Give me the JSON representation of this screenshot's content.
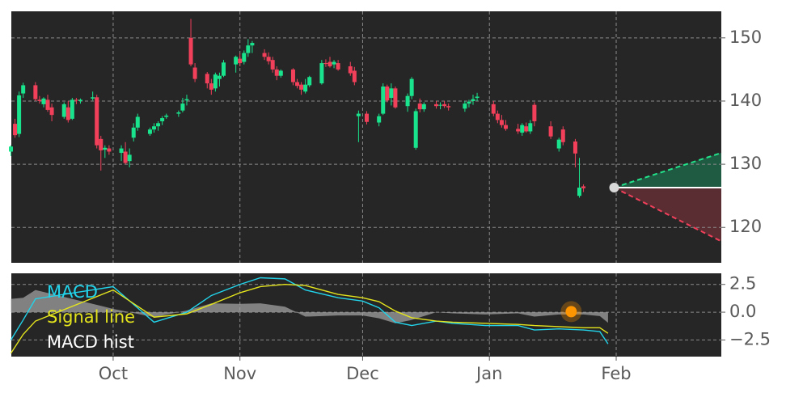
{
  "chart_data": [
    {
      "type": "candlestick",
      "up_color": "#19e38c",
      "down_color": "#f2405a",
      "xlim": [
        5.1,
        178.7
      ],
      "ylim": [
        114.4,
        154.2
      ],
      "yticks": [
        120,
        130,
        140,
        150
      ],
      "grid": true,
      "x": [
        5,
        6,
        7,
        8,
        11,
        12,
        13,
        14,
        15,
        18,
        19,
        20,
        21,
        22,
        25,
        26,
        27,
        28,
        29,
        32,
        33,
        34,
        35,
        36,
        39,
        40,
        41,
        42,
        43,
        46,
        47,
        48,
        49,
        50,
        53,
        54,
        55,
        56,
        57,
        60,
        61,
        62,
        63,
        64,
        67,
        68,
        69,
        70,
        71,
        74,
        75,
        76,
        77,
        78,
        81,
        82,
        83,
        84,
        85,
        88,
        89,
        90,
        92,
        95,
        96,
        97,
        98,
        99,
        102,
        103,
        104,
        105,
        106,
        109,
        110,
        111,
        112,
        116,
        117,
        118,
        119,
        123,
        124,
        125,
        126,
        129,
        130,
        131,
        132,
        133,
        137,
        139,
        140,
        143,
        144,
        145
      ],
      "ohlc": [
        [
          132,
          133,
          131.3,
          132.8
        ],
        [
          136.4,
          137.2,
          134.2,
          134.6
        ],
        [
          134.8,
          141.5,
          134.3,
          140.9
        ],
        [
          141.2,
          142.9,
          140.5,
          142.5
        ],
        [
          142.5,
          143,
          140,
          140.3
        ],
        [
          140.2,
          140.8,
          139.6,
          140.0
        ],
        [
          139.5,
          140.6,
          139.0,
          140.4
        ],
        [
          140.2,
          141,
          138.3,
          138.6
        ],
        [
          139,
          139.6,
          136.8,
          137.8
        ],
        [
          137.5,
          139.8,
          137.2,
          139.5
        ],
        [
          139,
          140,
          136.6,
          137.0
        ],
        [
          137.2,
          140.5,
          137,
          140.2
        ],
        [
          140.2,
          140.5,
          139.5,
          140.1
        ],
        [
          140,
          140.4,
          139.6,
          140.2
        ],
        [
          140.4,
          141.5,
          140.1,
          140.6
        ],
        [
          140.6,
          141,
          132.5,
          133
        ],
        [
          134,
          134.5,
          129,
          132.2
        ],
        [
          132.3,
          133,
          131,
          132.6
        ],
        [
          132.5,
          133,
          131.5,
          132
        ],
        [
          131.8,
          133,
          130.5,
          132.5
        ],
        [
          132,
          133.5,
          130,
          130.2
        ],
        [
          130.5,
          132.5,
          129.5,
          131.5
        ],
        [
          134.2,
          136.5,
          133.6,
          135.8
        ],
        [
          135.8,
          138,
          135.3,
          137.5
        ],
        [
          134.8,
          135.8,
          134.5,
          135.5
        ],
        [
          135.5,
          136.5,
          135,
          136
        ],
        [
          136,
          136.8,
          135.3,
          136.5
        ],
        [
          136.8,
          137.6,
          136.2,
          137.3
        ],
        [
          137.5,
          138,
          137.2,
          137.7
        ],
        [
          138,
          138.5,
          137.5,
          138.2
        ],
        [
          138.5,
          140.5,
          138.2,
          139.6
        ],
        [
          140.1,
          141,
          139.3,
          140.3
        ],
        [
          150,
          153,
          145.5,
          145.8
        ],
        [
          145.3,
          146,
          143,
          143.5
        ],
        [
          144.3,
          144.6,
          142,
          142.8
        ],
        [
          142.8,
          143.5,
          141,
          141.8
        ],
        [
          142,
          144.5,
          141.5,
          144.2
        ],
        [
          143.5,
          144.5,
          142.3,
          144
        ],
        [
          144,
          146.5,
          143.8,
          146.1
        ],
        [
          145.8,
          147.2,
          144.5,
          147
        ],
        [
          146.7,
          147.5,
          145.5,
          146
        ],
        [
          146.2,
          148,
          145.8,
          147.6
        ],
        [
          147.6,
          149.8,
          147,
          148.8
        ],
        [
          148.8,
          149.5,
          147.6,
          149.2
        ],
        [
          147.6,
          148.2,
          146.5,
          147
        ],
        [
          147,
          147.7,
          145.8,
          146.3
        ],
        [
          146.5,
          147,
          144.5,
          145
        ],
        [
          145,
          145.5,
          143.3,
          144
        ],
        [
          144,
          145,
          143.7,
          144.8
        ],
        [
          145,
          145.2,
          142.5,
          143
        ],
        [
          143,
          143.5,
          142,
          142.4
        ],
        [
          142.6,
          143,
          141,
          141.8
        ],
        [
          141.5,
          143.5,
          141.2,
          142.6
        ],
        [
          142.5,
          144,
          142.2,
          143.8
        ],
        [
          142.8,
          146.5,
          142.6,
          146
        ],
        [
          146,
          146.6,
          145.4,
          145.9
        ],
        [
          146.2,
          147,
          145.3,
          145.5
        ],
        [
          145.8,
          146.5,
          145.2,
          146.2
        ],
        [
          146,
          146.5,
          144.8,
          145
        ],
        [
          145.5,
          146.2,
          144,
          144.4
        ],
        [
          144.8,
          145.4,
          142.5,
          143
        ],
        [
          137.6,
          138.5,
          133.5,
          138
        ],
        [
          138,
          138.4,
          136.3,
          136.7
        ],
        [
          136.6,
          138,
          136,
          137.6
        ],
        [
          138,
          142.8,
          137.8,
          142.3
        ],
        [
          142.3,
          142.6,
          139.8,
          140.1
        ],
        [
          140.5,
          142.8,
          139.3,
          142
        ],
        [
          142,
          142.3,
          138.8,
          139
        ],
        [
          139.2,
          141.2,
          138.3,
          140.8
        ],
        [
          140.8,
          143.8,
          140.3,
          143.5
        ],
        [
          132.6,
          138.8,
          132.3,
          138.4
        ],
        [
          139.6,
          140.4,
          138.2,
          138.7
        ],
        [
          138.7,
          139.8,
          138.3,
          139.5
        ],
        [
          139.5,
          140,
          138.8,
          139.2
        ],
        [
          139.3,
          139.8,
          138.7,
          139.4
        ],
        [
          139.5,
          140,
          138.9,
          139.2
        ],
        [
          139.2,
          139.6,
          138.5,
          139
        ],
        [
          138.8,
          140,
          138.3,
          139.6
        ],
        [
          139.6,
          140.2,
          139,
          139.9
        ],
        [
          140,
          141,
          139.4,
          140.3
        ],
        [
          140.5,
          141.3,
          140,
          140.7
        ],
        [
          139.5,
          140,
          137.6,
          138
        ],
        [
          138,
          138.5,
          136.5,
          137
        ],
        [
          137,
          137.8,
          135.8,
          136.2
        ],
        [
          136.2,
          137,
          135.3,
          135.6
        ],
        [
          135.6,
          136.4,
          134.8,
          135.2
        ],
        [
          135,
          136.5,
          134.5,
          136.2
        ],
        [
          136,
          136.6,
          135,
          135.2
        ],
        [
          135.2,
          137,
          134.8,
          136.5
        ],
        [
          139.4,
          139.8,
          136,
          136.8
        ],
        [
          136,
          136.8,
          134,
          134.4
        ],
        [
          132.5,
          134.2,
          132,
          133.9
        ],
        [
          135.5,
          136,
          133,
          133.5
        ],
        [
          133.6,
          134,
          129.5,
          131.7
        ],
        [
          125,
          131,
          124.7,
          126.3
        ],
        [
          126.5,
          126.8,
          125.6,
          126.2
        ]
      ],
      "forecast": {
        "start_x": 152.5,
        "start": 126.3,
        "upper_end": 131.8,
        "lower_end": 117.8,
        "upper_color": "#22e38a",
        "upper_fill": "#1f5a43",
        "lower_color": "#f2405a",
        "lower_fill": "#5a2d33",
        "point_color": "#d8d8d8"
      }
    },
    {
      "type": "line",
      "xlim": [
        5.1,
        178.7
      ],
      "ylim": [
        -4.0,
        3.5
      ],
      "yticks": [
        2.5,
        {
          "value": 0,
          "label": "0.0"
        },
        {
          "value": -2.5,
          "label": "−2.5"
        }
      ],
      "xticks": [
        {
          "value": 30,
          "label": "Oct"
        },
        {
          "value": 61,
          "label": "Nov"
        },
        {
          "value": 91,
          "label": "Dec"
        },
        {
          "value": 122,
          "label": "Jan"
        },
        {
          "value": 153,
          "label": "Feb"
        }
      ],
      "grid": true,
      "legend": "upper left",
      "x": [
        5,
        8,
        11,
        30,
        40,
        48,
        54,
        61,
        66,
        72,
        77,
        85,
        91,
        95,
        99,
        103,
        109,
        113,
        121,
        129,
        133,
        139,
        145,
        149,
        151
      ],
      "series": [
        {
          "name": "MACD",
          "color": "#22d3ea",
          "values": [
            -2.5,
            -0.7,
            1.2,
            2.3,
            -0.9,
            0.0,
            1.5,
            2.5,
            3.1,
            3.0,
            2.0,
            1.3,
            1.0,
            0.4,
            -0.9,
            -1.2,
            -0.8,
            -1.0,
            -1.2,
            -1.2,
            -1.6,
            -1.5,
            -1.6,
            -1.75,
            -2.85
          ]
        },
        {
          "name": "Signal line",
          "color": "#e4e41e",
          "values": [
            -3.7,
            -2.0,
            -0.8,
            2.0,
            -0.45,
            -0.15,
            0.7,
            1.75,
            2.3,
            2.5,
            2.4,
            1.6,
            1.3,
            0.95,
            0.1,
            -0.5,
            -0.8,
            -0.9,
            -1.0,
            -1.1,
            -1.2,
            -1.3,
            -1.4,
            -1.4,
            -1.9
          ]
        },
        {
          "name": "MACD hist",
          "color": "#a0a0a0",
          "label_color": "#ffffff",
          "type": "area",
          "values": [
            1.2,
            1.3,
            2.0,
            0.3,
            -0.45,
            0.15,
            0.8,
            0.75,
            0.8,
            0.5,
            -0.4,
            -0.3,
            -0.3,
            -0.55,
            -1.0,
            -0.7,
            0,
            -0.1,
            -0.2,
            -0.1,
            -0.4,
            -0.2,
            -0.2,
            -0.35,
            -0.95
          ]
        }
      ],
      "marker": {
        "x": 142,
        "y": 0.05,
        "color": "#ff9500"
      }
    }
  ]
}
